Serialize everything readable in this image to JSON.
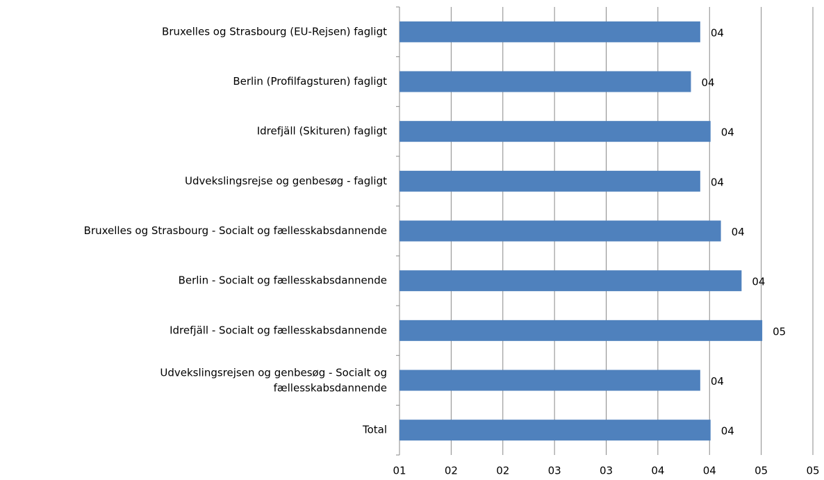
{
  "chart_data": {
    "type": "bar",
    "orientation": "horizontal",
    "categories": [
      "Bruxelles og Strasbourg (EU-Rejsen) fagligt",
      "Berlin (Profilfagsturen) fagligt",
      "Idrefjäll (Skituren) fagligt",
      "Udvekslingsrejse og genbesøg - fagligt",
      "Bruxelles og Strasbourg - Socialt og fællesskabsdannende",
      "Berlin - Socialt og fællesskabsdannende",
      "Idrefjäll - Socialt og fællesskabsdannende",
      "Udvekslingsrejsen og genbesøg - Socialt og\nfællesskabsdannende",
      "Total"
    ],
    "values": [
      3.91,
      3.82,
      4.01,
      3.91,
      4.11,
      4.31,
      4.51,
      3.91,
      4.01
    ],
    "value_labels": [
      "04",
      "04",
      "04",
      "04",
      "04",
      "04",
      "05",
      "04",
      "04"
    ],
    "color": "#4f81bd",
    "xlim": [
      1,
      5
    ],
    "xticks": [
      {
        "value": 1,
        "label": "01"
      },
      {
        "value": 1.5,
        "label": "02"
      },
      {
        "value": 2,
        "label": "02"
      },
      {
        "value": 2.5,
        "label": "03"
      },
      {
        "value": 3,
        "label": "03"
      },
      {
        "value": 3.5,
        "label": "04"
      },
      {
        "value": 4,
        "label": "04"
      },
      {
        "value": 4.5,
        "label": "05"
      },
      {
        "value": 5,
        "label": "05"
      }
    ],
    "grid": true
  }
}
